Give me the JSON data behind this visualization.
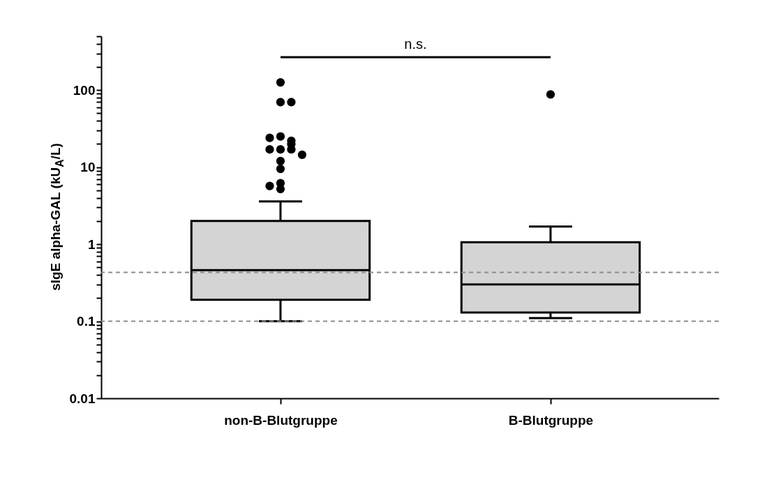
{
  "chart_data": {
    "type": "box",
    "ylabel": "sIgE alpha-GAL (kU$_{A}$/L)",
    "categories": [
      "non-B-Blutgruppe",
      "B-Blutgruppe"
    ],
    "log": true,
    "ylim": [
      0.01,
      500
    ],
    "yticks": [
      0.01,
      {
        "value": 0.02,
        "label": null
      },
      {
        "value": 0.03,
        "label": null
      },
      {
        "value": 0.04,
        "label": null
      },
      {
        "value": 0.05,
        "label": null
      },
      {
        "value": 0.06,
        "label": null
      },
      {
        "value": 0.07,
        "label": null
      },
      {
        "value": 0.08,
        "label": null
      },
      {
        "value": 0.09,
        "label": null
      },
      0.1,
      {
        "value": 0.2,
        "label": null
      },
      {
        "value": 0.3,
        "label": null
      },
      {
        "value": 0.4,
        "label": null
      },
      {
        "value": 0.5,
        "label": null
      },
      {
        "value": 0.6,
        "label": null
      },
      {
        "value": 0.7,
        "label": null
      },
      {
        "value": 0.8,
        "label": null
      },
      {
        "value": 0.9,
        "label": null
      },
      1,
      {
        "value": 2,
        "label": null
      },
      {
        "value": 3,
        "label": null
      },
      {
        "value": 4,
        "label": null
      },
      {
        "value": 5,
        "label": null
      },
      {
        "value": 6,
        "label": null
      },
      {
        "value": 7,
        "label": null
      },
      {
        "value": 8,
        "label": null
      },
      {
        "value": 9,
        "label": null
      },
      10,
      {
        "value": 20,
        "label": null
      },
      {
        "value": 30,
        "label": null
      },
      {
        "value": 40,
        "label": null
      },
      {
        "value": 50,
        "label": null
      },
      {
        "value": 60,
        "label": null
      },
      {
        "value": 70,
        "label": null
      },
      {
        "value": 80,
        "label": null
      },
      {
        "value": 90,
        "label": null
      },
      100,
      {
        "value": 200,
        "label": null
      },
      {
        "value": 300,
        "label": null
      },
      {
        "value": 400,
        "label": null
      },
      {
        "value": 500,
        "label": null
      }
    ],
    "grid": false,
    "series": [
      {
        "color": "#d4d4d4",
        "boxes": [
          {
            "low": 0.1,
            "q1": 0.19,
            "median": 0.46,
            "q3": 2,
            "high": 3.6,
            "outliers": [
              126,
              70,
              70,
              25,
              22,
              20,
              24,
              17,
              17,
              17,
              14.5,
              12,
              9.5,
              6.2,
              5.2,
              5.7
            ]
          },
          {
            "low": 0.11,
            "q1": 0.13,
            "median": 0.3,
            "q3": 1.06,
            "high": 1.7,
            "outliers": [
              88
            ]
          }
        ]
      }
    ],
    "ref_lines": [
      {
        "axis": "y",
        "value": 0.43,
        "color": "#8c8c8c",
        "line_style": "dashed"
      },
      {
        "axis": "y",
        "value": 0.1,
        "color": "#8c8c8c",
        "line_style": "dashed"
      }
    ],
    "annotations": [
      "n.s."
    ]
  }
}
